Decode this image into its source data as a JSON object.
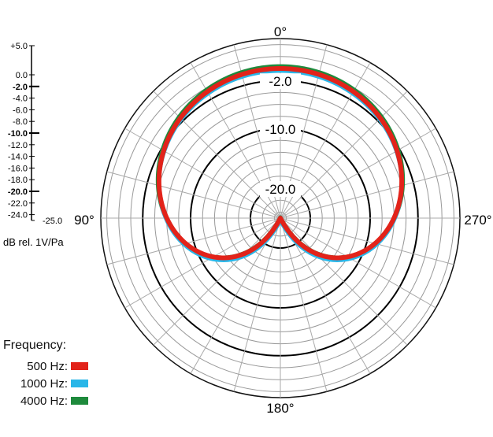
{
  "chart_data": {
    "type": "polar",
    "angle_labels": [
      "0°",
      "90°",
      "180°",
      "270°"
    ],
    "ring_labels": [
      "-2.0",
      "-10.0",
      "-20.0"
    ],
    "scale": {
      "ticks": [
        "+5.0",
        "0.0",
        "-2.0",
        "-4.0",
        "-6.0",
        "-8.0",
        "-10.0",
        "-12.0",
        "-14.0",
        "-16.0",
        "-18.0",
        "-20.0",
        "-22.0",
        "-24.0",
        "-25.0"
      ],
      "unit": "dB rel. 1V/Pa",
      "max": 5,
      "min": -25
    },
    "legend_title": "Frequency:",
    "series": [
      {
        "name": "500 Hz:",
        "color": "#e2231a",
        "pattern": "cardioid",
        "values_db": [
          0,
          -2,
          -10,
          -20,
          -25
        ]
      },
      {
        "name": "1000 Hz:",
        "color": "#29b6e8",
        "pattern": "cardioid",
        "values_db": [
          0,
          -2,
          -10,
          -20,
          -25
        ]
      },
      {
        "name": "4000 Hz:",
        "color": "#1e8a3c",
        "pattern": "cardioid",
        "values_db": [
          0,
          -2,
          -10,
          -20,
          -25
        ]
      }
    ]
  }
}
